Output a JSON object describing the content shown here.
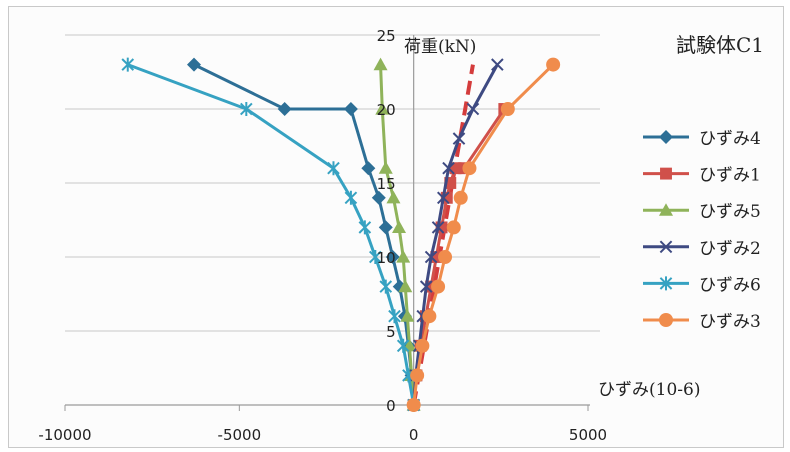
{
  "chart_data": {
    "type": "line",
    "title": "試験体C1",
    "ylabel": "荷重(kN)",
    "xlabel": "ひずみ(10-6)",
    "xlim": [
      -10000,
      5000
    ],
    "ylim": [
      0,
      25
    ],
    "xticks": [
      "-10000",
      "-5000",
      "0",
      "5000"
    ],
    "yticks": [
      "0",
      "5",
      "10",
      "15",
      "20",
      "25"
    ],
    "grid": "horizontal",
    "legend_position": "right",
    "series": [
      {
        "name": "ひずみ4",
        "color": "#2d6f96",
        "marker": "diamond",
        "x": [
          0,
          -60,
          -150,
          -250,
          -400,
          -600,
          -800,
          -1000,
          -1300,
          -1800,
          -3700,
          -6300
        ],
        "y": [
          0,
          2,
          4,
          6,
          8,
          10,
          12,
          14,
          16,
          20,
          20,
          23
        ]
      },
      {
        "name": "ひずみ1",
        "color": "#d0504a",
        "marker": "square",
        "x": [
          0,
          80,
          200,
          350,
          500,
          650,
          800,
          950,
          1050,
          1200,
          1450,
          2600
        ],
        "y": [
          0,
          2,
          4,
          6,
          8,
          10,
          12,
          14,
          15,
          16,
          16,
          20
        ]
      },
      {
        "name": "ひずみ5",
        "color": "#8fb35a",
        "marker": "triangle",
        "x": [
          0,
          -60,
          -120,
          -180,
          -240,
          -300,
          -420,
          -580,
          -800,
          -900,
          -950
        ],
        "y": [
          0,
          2,
          4,
          6,
          8,
          10,
          12,
          14,
          16,
          20,
          23
        ]
      },
      {
        "name": "ひずみ2",
        "color": "#3e4a82",
        "marker": "x",
        "x": [
          0,
          60,
          160,
          260,
          360,
          500,
          700,
          850,
          1000,
          1300,
          1700,
          2400
        ],
        "y": [
          0,
          2,
          4,
          6,
          8,
          10,
          12,
          14,
          16,
          18,
          20,
          23
        ]
      },
      {
        "name": "ひずみ6",
        "color": "#36a2c2",
        "marker": "star",
        "x": [
          0,
          -150,
          -300,
          -550,
          -800,
          -1100,
          -1400,
          -1800,
          -2300,
          -4800,
          -8200
        ],
        "y": [
          0,
          2,
          4,
          6,
          8,
          10,
          12,
          14,
          16,
          20,
          23
        ]
      },
      {
        "name": "ひずみ3",
        "color": "#f08c4c",
        "marker": "circle",
        "x": [
          0,
          100,
          250,
          450,
          700,
          900,
          1150,
          1350,
          1600,
          2700,
          4000
        ],
        "y": [
          0,
          2,
          4,
          6,
          8,
          10,
          12,
          14,
          16,
          20,
          23
        ]
      }
    ],
    "reference_line": {
      "color": "#d43c3c",
      "style": "dashed",
      "x": [
        0,
        1700
      ],
      "y": [
        0,
        23
      ]
    }
  }
}
